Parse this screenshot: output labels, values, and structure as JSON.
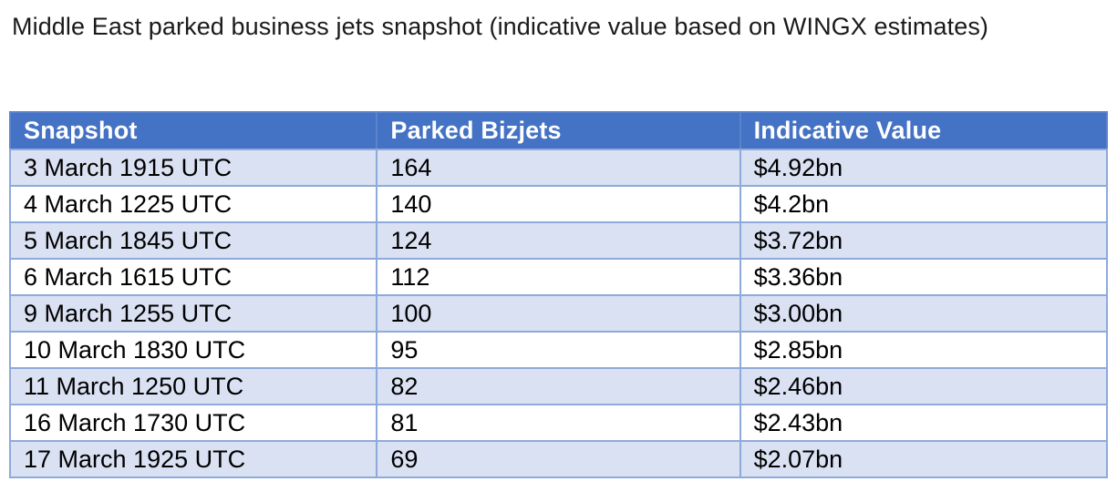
{
  "title": "Middle East parked business jets snapshot (indicative value based on WINGX estimates)",
  "colors": {
    "header_bg": "#4472C4",
    "header_text": "#FFFFFF",
    "row_alt_bg": "#D9E1F2",
    "row_bg": "#FFFFFF",
    "border": "#8EAADB",
    "body_text": "#000000"
  },
  "table": {
    "headers": [
      "Snapshot",
      "Parked Bizjets",
      "Indicative Value"
    ],
    "rows": [
      [
        "3 March 1915 UTC",
        "164",
        "$4.92bn"
      ],
      [
        "4 March 1225 UTC",
        "140",
        "$4.2bn"
      ],
      [
        "5 March 1845 UTC",
        "124",
        "$3.72bn"
      ],
      [
        "6 March 1615 UTC",
        "112",
        "$3.36bn"
      ],
      [
        "9 March 1255 UTC",
        "100",
        "$3.00bn"
      ],
      [
        "10 March 1830 UTC",
        "95",
        "$2.85bn"
      ],
      [
        "11 March 1250 UTC",
        "82",
        "$2.46bn"
      ],
      [
        "16 March 1730 UTC",
        "81",
        "$2.43bn"
      ],
      [
        "17 March 1925 UTC",
        "69",
        "$2.07bn"
      ]
    ]
  },
  "chart_data": {
    "type": "table",
    "title": "Middle East parked business jets snapshot (indicative value based on WINGX estimates)",
    "columns": [
      "Snapshot",
      "Parked Bizjets",
      "Indicative Value"
    ],
    "snapshots": [
      "3 March 1915 UTC",
      "4 March 1225 UTC",
      "5 March 1845 UTC",
      "6 March 1615 UTC",
      "9 March 1255 UTC",
      "10 March 1830 UTC",
      "11 March 1250 UTC",
      "16 March 1730 UTC",
      "17 March 1925 UTC"
    ],
    "parked_bizjets": [
      164,
      140,
      124,
      112,
      100,
      95,
      82,
      81,
      69
    ],
    "indicative_value_usd_bn": [
      4.92,
      4.2,
      3.72,
      3.36,
      3.0,
      2.85,
      2.46,
      2.43,
      2.07
    ],
    "indicative_value_labels": [
      "$4.92bn",
      "$4.2bn",
      "$3.72bn",
      "$3.36bn",
      "$3.00bn",
      "$2.85bn",
      "$2.46bn",
      "$2.43bn",
      "$2.07bn"
    ]
  }
}
